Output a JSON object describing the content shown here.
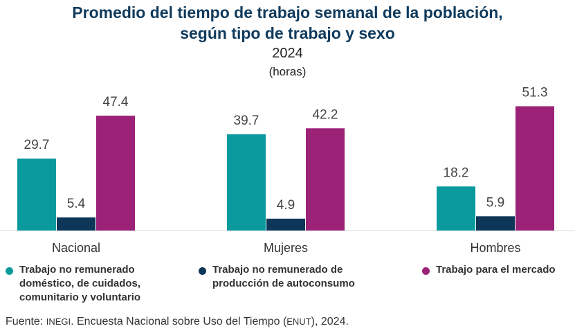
{
  "title_line1": "Promedio del tiempo de trabajo semanal de la población,",
  "title_line2": "según tipo de trabajo y sexo",
  "subtitle": "2024",
  "unit": "(horas)",
  "source": {
    "prefix": "Fuente: ",
    "org": "INEGI",
    "middle": ". Encuesta Nacional sobre Uso del Tiempo (",
    "acronym": "ENUT",
    "suffix": "), 2024."
  },
  "chart_data": {
    "type": "bar",
    "categories": [
      "Nacional",
      "Mujeres",
      "Hombres"
    ],
    "series": [
      {
        "name": "Trabajo no remunerado doméstico, de cuidados, comunitario y voluntario",
        "values": [
          29.7,
          39.7,
          18.2
        ],
        "color": "#0a9a9e"
      },
      {
        "name": "Trabajo no remunerado de producción de autoconsumo",
        "values": [
          5.4,
          4.9,
          5.9
        ],
        "color": "#0d3658"
      },
      {
        "name": "Trabajo para el mercado",
        "values": [
          47.4,
          42.2,
          51.3
        ],
        "color": "#9c2277"
      }
    ],
    "ylim": [
      0,
      60
    ],
    "grid": false,
    "legend_position": "bottom"
  },
  "legend": [
    {
      "label": "Trabajo no remunerado\ndoméstico, de cuidados,\ncomunitario y voluntario",
      "color": "#0a9a9e"
    },
    {
      "label": "Trabajo no remunerado de\nproducción de autoconsumo",
      "color": "#0d3658"
    },
    {
      "label": "Trabajo para el mercado",
      "color": "#9c2277"
    }
  ]
}
